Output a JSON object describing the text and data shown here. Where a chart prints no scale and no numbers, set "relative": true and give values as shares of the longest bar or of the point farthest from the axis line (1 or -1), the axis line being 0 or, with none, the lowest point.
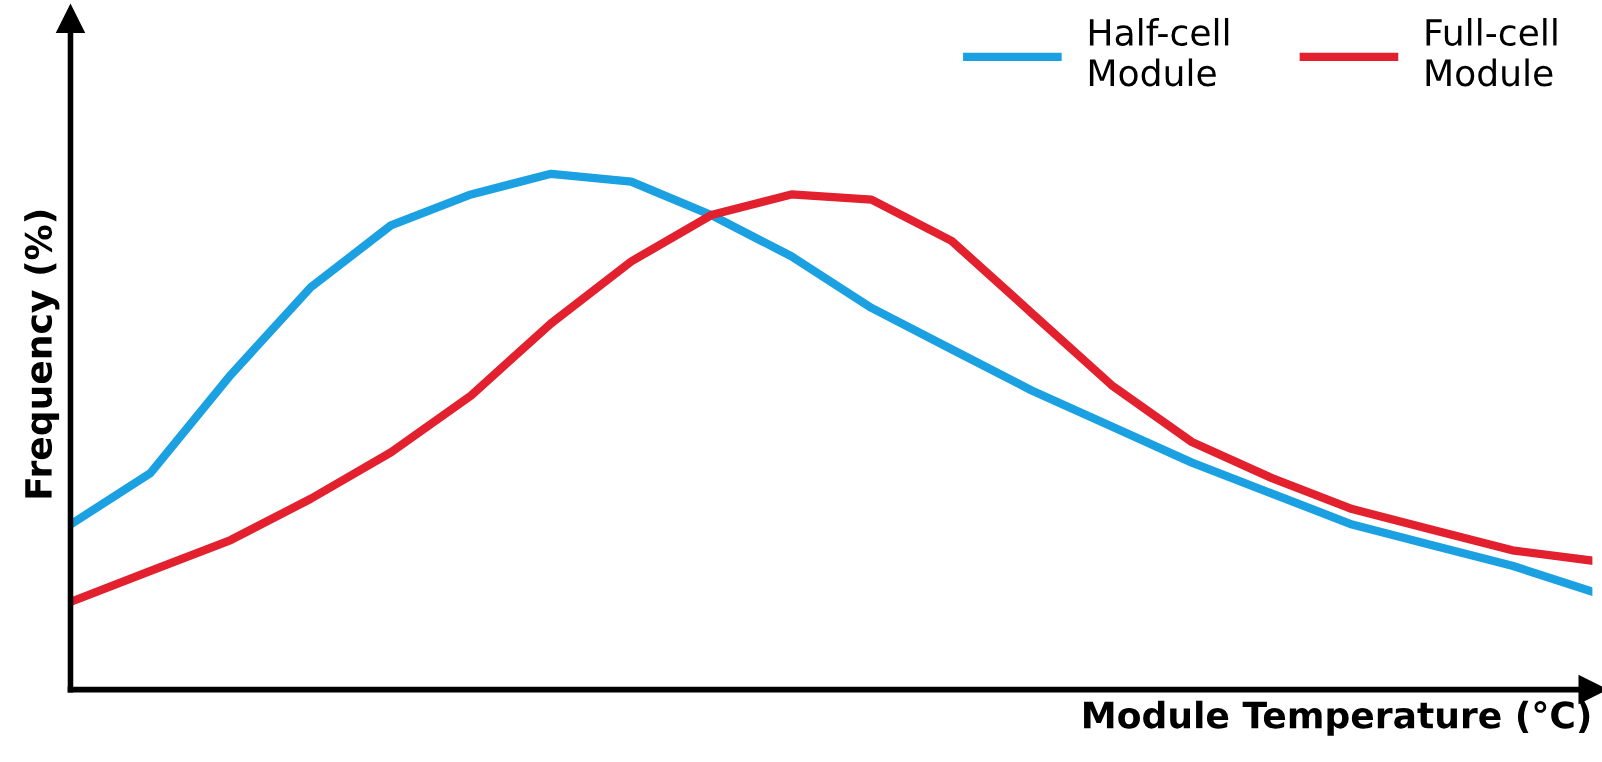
{
  "chart_data": {
    "type": "line",
    "relative": true,
    "xlabel": "Module Temperature (°C)",
    "ylabel": "Frequency (%)",
    "categories": [
      null,
      null,
      null,
      null,
      null,
      null,
      null,
      null,
      null,
      null,
      null,
      null,
      null,
      null,
      null,
      null,
      null,
      null,
      null,
      null
    ],
    "series": [
      {
        "name": "Half-cell\nModule",
        "color": "#1ba1e2",
        "values": [
          0.32,
          0.42,
          0.61,
          0.78,
          0.9,
          0.96,
          1.0,
          0.985,
          0.92,
          0.84,
          0.74,
          0.66,
          0.58,
          0.51,
          0.44,
          0.38,
          0.32,
          0.28,
          0.24,
          0.19
        ]
      },
      {
        "name": "Full-cell\nModule",
        "color": "#e2202e",
        "values": [
          0.17,
          0.23,
          0.29,
          0.37,
          0.46,
          0.57,
          0.71,
          0.83,
          0.92,
          0.96,
          0.95,
          0.87,
          0.73,
          0.59,
          0.48,
          0.41,
          0.35,
          0.31,
          0.27,
          0.25
        ]
      }
    ],
    "legend": "top right",
    "marker": "none",
    "line_style": "solid"
  }
}
